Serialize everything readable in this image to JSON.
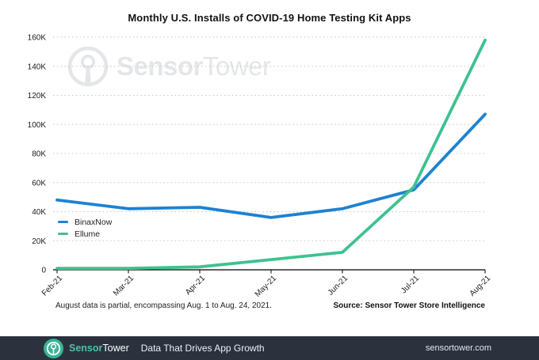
{
  "title": "Monthly U.S. Installs of COVID-19 Home Testing Kit Apps",
  "watermark": {
    "brand_bold": "Sensor",
    "brand_light": "Tower"
  },
  "chart_data": {
    "type": "line",
    "title": "Monthly U.S. Installs of COVID-19 Home Testing Kit Apps",
    "categories": [
      "Feb-21",
      "Mar-21",
      "Apr-21",
      "May-21",
      "Jun-21",
      "Jul-21",
      "Aug-21"
    ],
    "series": [
      {
        "name": "BinaxNow",
        "color": "#1e82d2",
        "values": [
          48000,
          42000,
          43000,
          36000,
          42000,
          55000,
          107000
        ]
      },
      {
        "name": "Ellume",
        "color": "#3ec28f",
        "values": [
          1000,
          1000,
          2000,
          7000,
          12000,
          57000,
          158000
        ]
      }
    ],
    "xlabel": "",
    "ylabel": "",
    "ylim": [
      0,
      160000
    ],
    "ytick_step": 20000,
    "ytick_labels": [
      "0",
      "20K",
      "40K",
      "60K",
      "80K",
      "100K",
      "120K",
      "140K",
      "160K"
    ],
    "grid": "horizontal-dotted",
    "legend_position": "middle-left"
  },
  "footnote": "August data is partial, encompassing Aug. 1 to Aug. 24, 2021.",
  "source": "Source: Sensor Tower Store Intelligence",
  "footer": {
    "brand_accent": "Sensor",
    "brand_rest": "Tower",
    "tagline": "Data That Drives App Growth",
    "website": "sensortower.com"
  },
  "colors": {
    "binaxnow_line": "#1e82d2",
    "ellume_line": "#3ec28f",
    "grid_dots": "#c9c9c9",
    "axis": "#000000",
    "watermark": "#e4e6e9",
    "footer_bg": "#2b323e",
    "footer_logo_teal": "#36b694",
    "footer_accent_text": "#4cc0a9"
  }
}
